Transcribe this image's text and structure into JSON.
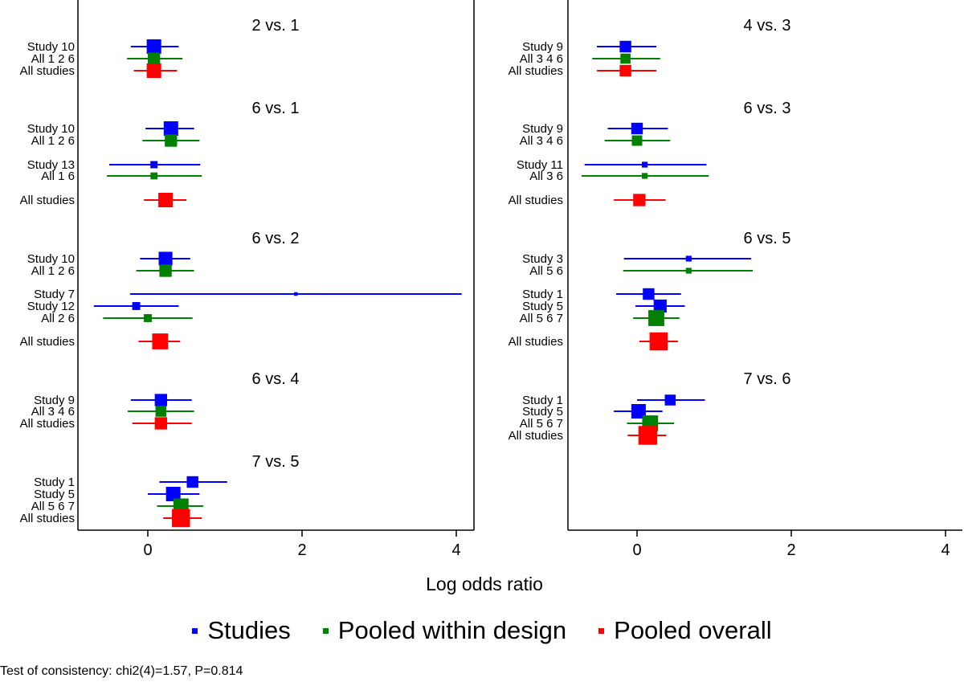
{
  "chart_data": {
    "type": "forest",
    "xlabel": "Log odds ratio",
    "xticks": [
      0,
      2,
      4
    ],
    "xlim": [
      -0.9,
      4.25
    ],
    "colors": {
      "study": "#0000ff",
      "design": "#008000",
      "overall": "#ff0000"
    },
    "legend": [
      {
        "label": "Studies",
        "kind": "study"
      },
      {
        "label": "Pooled within design",
        "kind": "design"
      },
      {
        "label": "Pooled overall",
        "kind": "overall"
      }
    ],
    "footnote": "Test of consistency: chi2(4)=1.57, P=0.814",
    "panels": [
      {
        "side": "left",
        "groups": [
          {
            "title": "2 vs. 1",
            "rows": [
              {
                "label": "Study 10",
                "kind": "study",
                "est": 0.08,
                "lo": -0.22,
                "hi": 0.4,
                "w": 1.0
              },
              {
                "label": "All 1 2 6",
                "kind": "design",
                "est": 0.08,
                "lo": -0.27,
                "hi": 0.45,
                "w": 0.85
              },
              {
                "label": "All studies",
                "kind": "overall",
                "est": 0.08,
                "lo": -0.18,
                "hi": 0.38,
                "w": 1.0
              }
            ]
          },
          {
            "title": "6 vs. 1",
            "rows": [
              {
                "label": "Study 10",
                "kind": "study",
                "est": 0.3,
                "lo": -0.03,
                "hi": 0.6,
                "w": 1.0
              },
              {
                "label": "All 1 2 6",
                "kind": "design",
                "est": 0.3,
                "lo": -0.07,
                "hi": 0.67,
                "w": 0.85
              },
              {
                "label": "Study 13",
                "kind": "study",
                "est": 0.08,
                "lo": -0.5,
                "hi": 0.68,
                "w": 0.5
              },
              {
                "label": "All 1 6",
                "kind": "design",
                "est": 0.08,
                "lo": -0.53,
                "hi": 0.7,
                "w": 0.48
              },
              {
                "label": "All studies",
                "kind": "overall",
                "est": 0.23,
                "lo": -0.05,
                "hi": 0.5,
                "w": 1.0
              }
            ]
          },
          {
            "title": "6 vs. 2",
            "rows": [
              {
                "label": "Study 10",
                "kind": "study",
                "est": 0.23,
                "lo": -0.1,
                "hi": 0.55,
                "w": 0.95
              },
              {
                "label": "All 1 2 6",
                "kind": "design",
                "est": 0.23,
                "lo": -0.15,
                "hi": 0.6,
                "w": 0.85
              },
              {
                "label": "Study 7",
                "kind": "study",
                "est": 1.92,
                "lo": -0.23,
                "hi": 4.07,
                "w": 0.25
              },
              {
                "label": "Study 12",
                "kind": "study",
                "est": -0.15,
                "lo": -0.7,
                "hi": 0.4,
                "w": 0.55
              },
              {
                "label": "All 2 6",
                "kind": "design",
                "est": 0.0,
                "lo": -0.58,
                "hi": 0.58,
                "w": 0.55
              },
              {
                "label": "All studies",
                "kind": "overall",
                "est": 0.16,
                "lo": -0.12,
                "hi": 0.42,
                "w": 1.1
              }
            ]
          },
          {
            "title": "6 vs. 4",
            "rows": [
              {
                "label": "Study 9",
                "kind": "study",
                "est": 0.17,
                "lo": -0.22,
                "hi": 0.57,
                "w": 0.85
              },
              {
                "label": "All 3 4 6",
                "kind": "design",
                "est": 0.17,
                "lo": -0.26,
                "hi": 0.6,
                "w": 0.75
              },
              {
                "label": "All studies",
                "kind": "overall",
                "est": 0.17,
                "lo": -0.2,
                "hi": 0.57,
                "w": 0.85
              }
            ]
          },
          {
            "title": "7 vs. 5",
            "rows": [
              {
                "label": "Study 1",
                "kind": "study",
                "est": 0.58,
                "lo": 0.15,
                "hi": 1.03,
                "w": 0.8
              },
              {
                "label": "Study 5",
                "kind": "study",
                "est": 0.33,
                "lo": 0.0,
                "hi": 0.67,
                "w": 1.0
              },
              {
                "label": "All 5 6 7",
                "kind": "design",
                "est": 0.43,
                "lo": 0.12,
                "hi": 0.72,
                "w": 1.05
              },
              {
                "label": "All studies",
                "kind": "overall",
                "est": 0.43,
                "lo": 0.2,
                "hi": 0.7,
                "w": 1.25
              }
            ]
          }
        ]
      },
      {
        "side": "right",
        "groups": [
          {
            "title": "4 vs. 3",
            "rows": [
              {
                "label": "Study 9",
                "kind": "study",
                "est": -0.15,
                "lo": -0.52,
                "hi": 0.25,
                "w": 0.8
              },
              {
                "label": "All 3 4 6",
                "kind": "design",
                "est": -0.15,
                "lo": -0.58,
                "hi": 0.3,
                "w": 0.7
              },
              {
                "label": "All studies",
                "kind": "overall",
                "est": -0.15,
                "lo": -0.52,
                "hi": 0.25,
                "w": 0.8
              }
            ]
          },
          {
            "title": "6 vs. 3",
            "rows": [
              {
                "label": "Study 9",
                "kind": "study",
                "est": 0.0,
                "lo": -0.38,
                "hi": 0.4,
                "w": 0.8
              },
              {
                "label": "All 3 4 6",
                "kind": "design",
                "est": 0.0,
                "lo": -0.42,
                "hi": 0.43,
                "w": 0.72
              },
              {
                "label": "Study 11",
                "kind": "study",
                "est": 0.1,
                "lo": -0.68,
                "hi": 0.9,
                "w": 0.4
              },
              {
                "label": "All 3 6",
                "kind": "design",
                "est": 0.1,
                "lo": -0.72,
                "hi": 0.93,
                "w": 0.4
              },
              {
                "label": "All studies",
                "kind": "overall",
                "est": 0.03,
                "lo": -0.3,
                "hi": 0.37,
                "w": 0.85
              }
            ]
          },
          {
            "title": "6 vs. 5",
            "rows": [
              {
                "label": "Study 3",
                "kind": "study",
                "est": 0.67,
                "lo": -0.17,
                "hi": 1.48,
                "w": 0.4
              },
              {
                "label": "All 5 6",
                "kind": "design",
                "est": 0.67,
                "lo": -0.18,
                "hi": 1.5,
                "w": 0.4
              },
              {
                "label": "Study 1",
                "kind": "study",
                "est": 0.15,
                "lo": -0.27,
                "hi": 0.57,
                "w": 0.8
              },
              {
                "label": "Study 5",
                "kind": "study",
                "est": 0.3,
                "lo": -0.02,
                "hi": 0.62,
                "w": 0.9
              },
              {
                "label": "All 5 6 7",
                "kind": "design",
                "est": 0.25,
                "lo": -0.05,
                "hi": 0.55,
                "w": 1.1
              },
              {
                "label": "All studies",
                "kind": "overall",
                "est": 0.28,
                "lo": 0.03,
                "hi": 0.53,
                "w": 1.25
              }
            ]
          },
          {
            "title": "7 vs. 6",
            "rows": [
              {
                "label": "Study 1",
                "kind": "study",
                "est": 0.43,
                "lo": 0.0,
                "hi": 0.88,
                "w": 0.75
              },
              {
                "label": "Study 5",
                "kind": "study",
                "est": 0.02,
                "lo": -0.3,
                "hi": 0.33,
                "w": 1.0
              },
              {
                "label": "All 5 6 7",
                "kind": "design",
                "est": 0.17,
                "lo": -0.13,
                "hi": 0.48,
                "w": 1.1
              },
              {
                "label": "All studies",
                "kind": "overall",
                "est": 0.14,
                "lo": -0.12,
                "hi": 0.38,
                "w": 1.3
              }
            ]
          }
        ]
      }
    ]
  }
}
